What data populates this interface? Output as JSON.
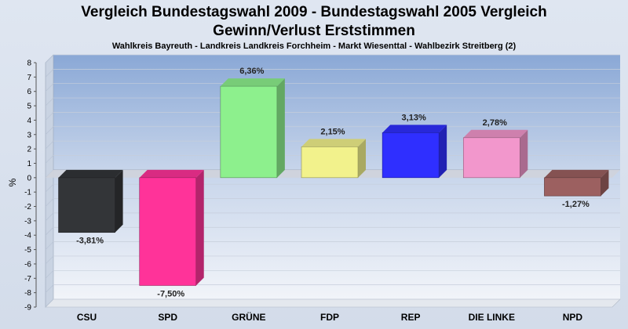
{
  "chart_data": {
    "type": "bar",
    "title": "Vergleich Bundestagswahl 2009 - Bundestagswahl 2005 Vergleich",
    "title_line2": "Gewinn/Verlust Erststimmen",
    "subtitle": "Wahlkreis Bayreuth - Landkreis Landkreis Forchheim - Markt Wiesenttal - Wahlbezirk Streitberg (2)",
    "ylabel": "%",
    "xlabel": "",
    "ylim": [
      -9,
      8
    ],
    "yticks": [
      "8",
      "7",
      "6",
      "5",
      "4",
      "3",
      "2",
      "1",
      "0",
      "-1",
      "-2",
      "-3",
      "-4",
      "-5",
      "-6",
      "-7",
      "-8",
      "-9"
    ],
    "categories": [
      "CSU",
      "SPD",
      "GRÜNE",
      "FDP",
      "REP",
      "DIE LINKE",
      "NPD"
    ],
    "values": [
      -3.81,
      -7.5,
      6.36,
      2.15,
      3.13,
      2.78,
      -1.27
    ],
    "value_labels": [
      "-3,81%",
      "-7,50%",
      "6,36%",
      "2,15%",
      "3,13%",
      "2,78%",
      "-1,27%"
    ],
    "colors": [
      "#333538",
      "#ff3399",
      "#8df08d",
      "#f2f28c",
      "#2f2fff",
      "#f297cc",
      "#9c6060"
    ],
    "grid": true,
    "legend": "none"
  }
}
